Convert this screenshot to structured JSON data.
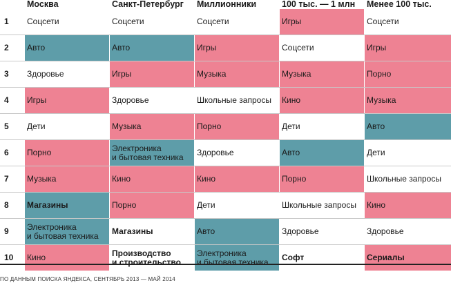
{
  "headers": [
    "Москва",
    "Санкт-Петербург",
    "Миллионники",
    "100 тыс. — 1 млн",
    "Менее 100 тыс."
  ],
  "rows": [
    {
      "rank": "1",
      "cells": [
        {
          "text": "Соцсети",
          "color": "none",
          "bold": false
        },
        {
          "text": "Соцсети",
          "color": "none",
          "bold": false
        },
        {
          "text": "Соцсети",
          "color": "none",
          "bold": false
        },
        {
          "text": "Игры",
          "color": "pink",
          "bold": false
        },
        {
          "text": "Соцсети",
          "color": "none",
          "bold": false
        }
      ]
    },
    {
      "rank": "2",
      "cells": [
        {
          "text": "Авто",
          "color": "teal",
          "bold": false
        },
        {
          "text": "Авто",
          "color": "teal",
          "bold": false
        },
        {
          "text": "Игры",
          "color": "pink",
          "bold": false
        },
        {
          "text": "Соцсети",
          "color": "none",
          "bold": false
        },
        {
          "text": "Игры",
          "color": "pink",
          "bold": false
        }
      ]
    },
    {
      "rank": "3",
      "cells": [
        {
          "text": "Здоровье",
          "color": "none",
          "bold": false
        },
        {
          "text": "Игры",
          "color": "pink",
          "bold": false
        },
        {
          "text": "Музыка",
          "color": "pink",
          "bold": false
        },
        {
          "text": "Музыка",
          "color": "pink",
          "bold": false
        },
        {
          "text": "Порно",
          "color": "pink",
          "bold": false
        }
      ]
    },
    {
      "rank": "4",
      "cells": [
        {
          "text": "Игры",
          "color": "pink",
          "bold": false
        },
        {
          "text": "Здоровье",
          "color": "none",
          "bold": false
        },
        {
          "text": "Школьные запросы",
          "color": "none",
          "bold": false
        },
        {
          "text": "Кино",
          "color": "pink",
          "bold": false
        },
        {
          "text": "Музыка",
          "color": "pink",
          "bold": false
        }
      ]
    },
    {
      "rank": "5",
      "cells": [
        {
          "text": "Дети",
          "color": "none",
          "bold": false
        },
        {
          "text": "Музыка",
          "color": "pink",
          "bold": false
        },
        {
          "text": "Порно",
          "color": "pink",
          "bold": false
        },
        {
          "text": "Дети",
          "color": "none",
          "bold": false
        },
        {
          "text": "Авто",
          "color": "teal",
          "bold": false
        }
      ]
    },
    {
      "rank": "6",
      "cells": [
        {
          "text": "Порно",
          "color": "pink",
          "bold": false
        },
        {
          "text": "Электроника\nи бытовая техника",
          "color": "teal",
          "bold": false
        },
        {
          "text": "Здоровье",
          "color": "none",
          "bold": false
        },
        {
          "text": "Авто",
          "color": "teal",
          "bold": false
        },
        {
          "text": "Дети",
          "color": "none",
          "bold": false
        }
      ]
    },
    {
      "rank": "7",
      "cells": [
        {
          "text": "Музыка",
          "color": "pink",
          "bold": false
        },
        {
          "text": "Кино",
          "color": "pink",
          "bold": false
        },
        {
          "text": "Кино",
          "color": "pink",
          "bold": false
        },
        {
          "text": "Порно",
          "color": "pink",
          "bold": false
        },
        {
          "text": "Школьные запросы",
          "color": "none",
          "bold": false
        }
      ]
    },
    {
      "rank": "8",
      "cells": [
        {
          "text": "Магазины",
          "color": "teal",
          "bold": true
        },
        {
          "text": "Порно",
          "color": "pink",
          "bold": false
        },
        {
          "text": "Дети",
          "color": "none",
          "bold": false
        },
        {
          "text": "Школьные запросы",
          "color": "none",
          "bold": false
        },
        {
          "text": "Кино",
          "color": "pink",
          "bold": false
        }
      ]
    },
    {
      "rank": "9",
      "cells": [
        {
          "text": "Электроника\nи бытовая техника",
          "color": "teal",
          "bold": false
        },
        {
          "text": "Магазины",
          "color": "none",
          "bold": true
        },
        {
          "text": "Авто",
          "color": "teal",
          "bold": false
        },
        {
          "text": "Здоровье",
          "color": "none",
          "bold": false
        },
        {
          "text": "Здоровье",
          "color": "none",
          "bold": false
        }
      ]
    },
    {
      "rank": "10",
      "cells": [
        {
          "text": "Кино",
          "color": "pink",
          "bold": false
        },
        {
          "text": "Производство\nи строительство",
          "color": "none",
          "bold": true
        },
        {
          "text": "Электроника\nи бытовая техника",
          "color": "teal",
          "bold": false
        },
        {
          "text": "Софт",
          "color": "none",
          "bold": true
        },
        {
          "text": "Сериалы",
          "color": "pink",
          "bold": true
        }
      ]
    }
  ],
  "source": "ПО ДАННЫМ ПОИСКА ЯНДЕКСА, СЕНТЯБРЬ 2013 — МАЙ 2014",
  "colors": {
    "pink": "#ee8293",
    "teal": "#5e9da9"
  }
}
